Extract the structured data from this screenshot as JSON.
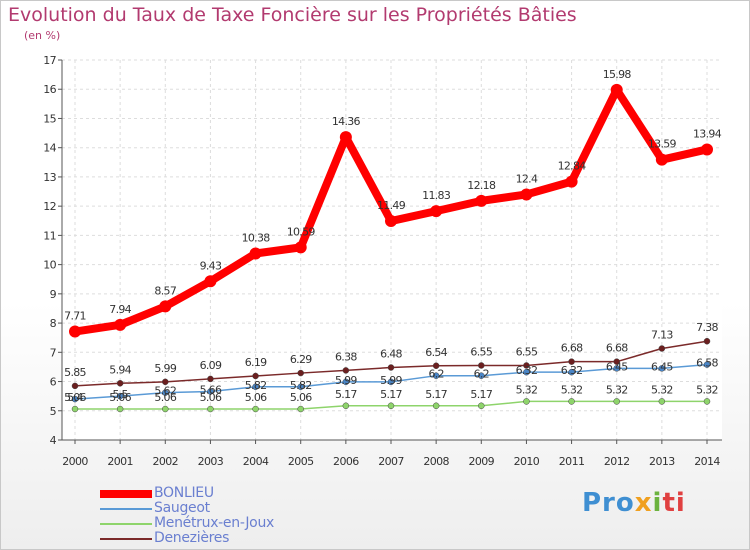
{
  "chart_data": {
    "type": "line",
    "title": "Evolution du Taux de Taxe Foncière sur les Propriétés Bâties",
    "subtitle": "(en %)",
    "xlabel": "",
    "ylabel": "",
    "x": [
      "2000",
      "2001",
      "2002",
      "2003",
      "2004",
      "2005",
      "2006",
      "2007",
      "2008",
      "2009",
      "2010",
      "2011",
      "2012",
      "2013",
      "2014"
    ],
    "ylim": [
      4,
      17
    ],
    "yticks": [
      "4",
      "5",
      "6",
      "7",
      "8",
      "9",
      "10",
      "11",
      "12",
      "13",
      "14",
      "15",
      "16",
      "17"
    ],
    "grid": true,
    "legend_position": "bottom-left",
    "series": [
      {
        "name": "BONLIEU",
        "color": "#ff0000",
        "values": [
          7.71,
          7.94,
          8.57,
          9.43,
          10.38,
          10.59,
          14.36,
          11.49,
          11.83,
          12.18,
          12.4,
          12.84,
          15.98,
          13.59,
          13.94
        ],
        "labels": [
          "7.71",
          "7.94",
          "8.57",
          "9.43",
          "10.38",
          "10.59",
          "14.36",
          "11.49",
          "11.83",
          "12.18",
          "12.4",
          "12.84",
          "15.98",
          "13.59",
          "13.94"
        ]
      },
      {
        "name": "Saugeot",
        "color": "#5a9ad6",
        "values": [
          5.4,
          5.5,
          5.62,
          5.66,
          5.82,
          5.82,
          5.99,
          5.99,
          6.2,
          6.2,
          6.32,
          6.32,
          6.45,
          6.45,
          6.58
        ],
        "labels": [
          "5.4",
          "5.5",
          "5.62",
          "5.66",
          "5.82",
          "5.82",
          "5.99",
          "5.99",
          "6.2",
          "6.2",
          "6.32",
          "6.32",
          "6.45",
          "6.45",
          "6.58"
        ]
      },
      {
        "name": "Menétrux-en-Joux",
        "color": "#8ed46b",
        "values": [
          5.06,
          5.06,
          5.06,
          5.06,
          5.06,
          5.06,
          5.17,
          5.17,
          5.17,
          5.17,
          5.32,
          5.32,
          5.32,
          5.32,
          5.32
        ],
        "labels": [
          "5.06",
          "5.06",
          "5.06",
          "5.06",
          "5.06",
          "5.06",
          "5.17",
          "5.17",
          "5.17",
          "5.17",
          "5.32",
          "5.32",
          "5.32",
          "5.32",
          "5.32"
        ]
      },
      {
        "name": "Denezières",
        "color": "#7b2a2a",
        "values": [
          5.85,
          5.94,
          5.99,
          6.09,
          6.19,
          6.29,
          6.38,
          6.48,
          6.54,
          6.55,
          6.55,
          6.68,
          6.68,
          7.13,
          7.38
        ],
        "labels": [
          "5.85",
          "5.94",
          "5.99",
          "6.09",
          "6.19",
          "6.29",
          "6.38",
          "6.48",
          "6.54",
          "6.55",
          "6.55",
          "6.68",
          "6.68",
          "7.13",
          "7.38"
        ]
      }
    ]
  },
  "logo": {
    "part1": "Pro",
    "part2": "x",
    "part3": "i",
    "part4": "ti"
  }
}
